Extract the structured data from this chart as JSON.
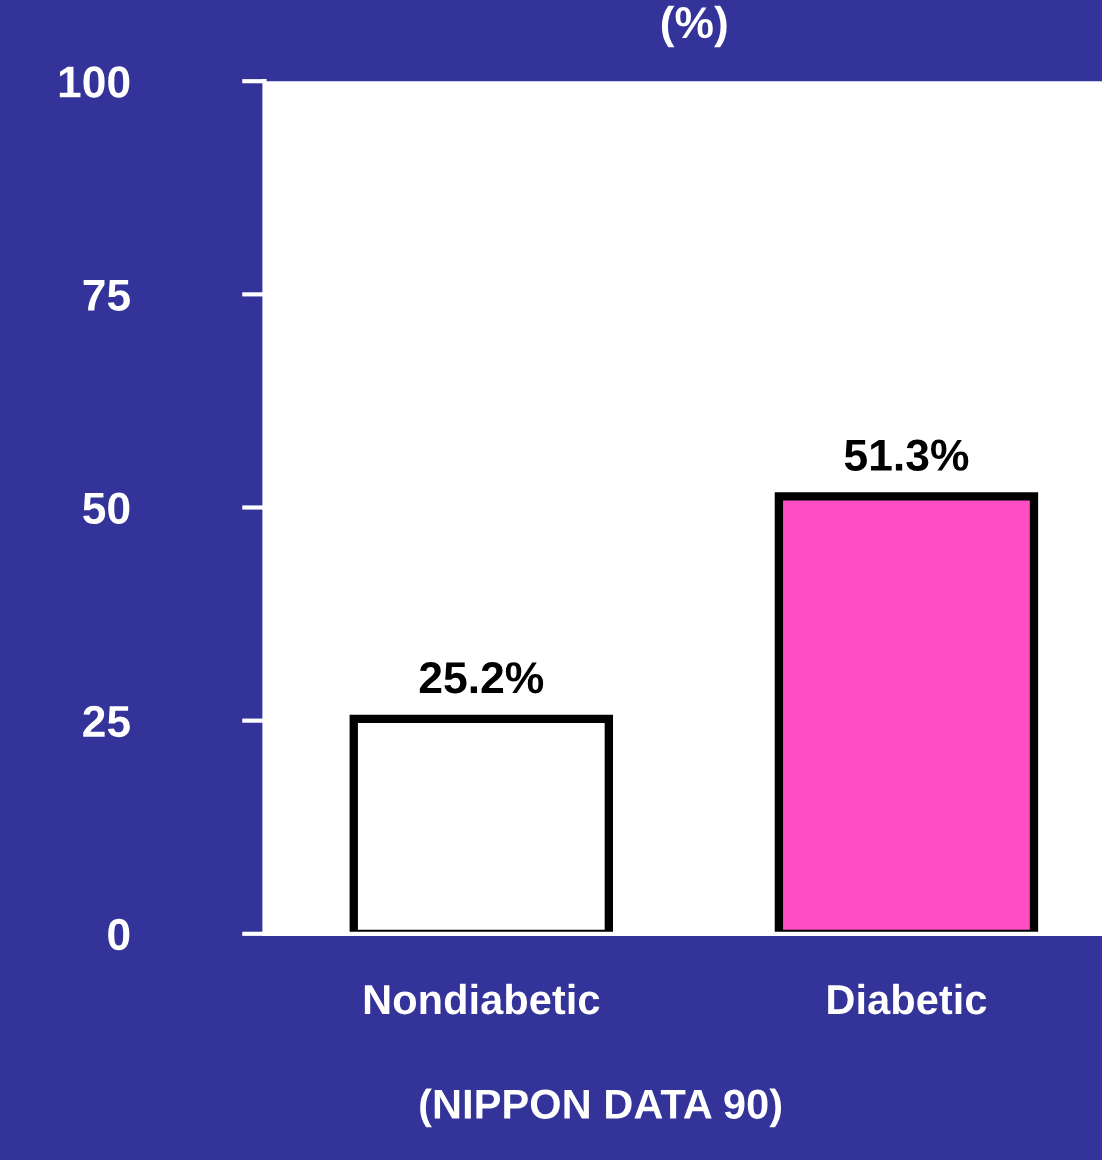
{
  "chart_data": {
    "type": "bar",
    "ylabel": "(%)",
    "categories": [
      "Nondiabetic",
      "Diabetic"
    ],
    "values": [
      25.2,
      51.3
    ],
    "colors": [
      "#ffffff",
      "#ff4ec4"
    ],
    "value_labels": [
      "25.2%",
      "51.3%"
    ],
    "ylim": [
      0,
      100
    ],
    "yticks": [
      0,
      25,
      50,
      75,
      100
    ],
    "grid": false,
    "legend": false,
    "annotations": [
      "(NIPPON DATA 90)"
    ]
  }
}
